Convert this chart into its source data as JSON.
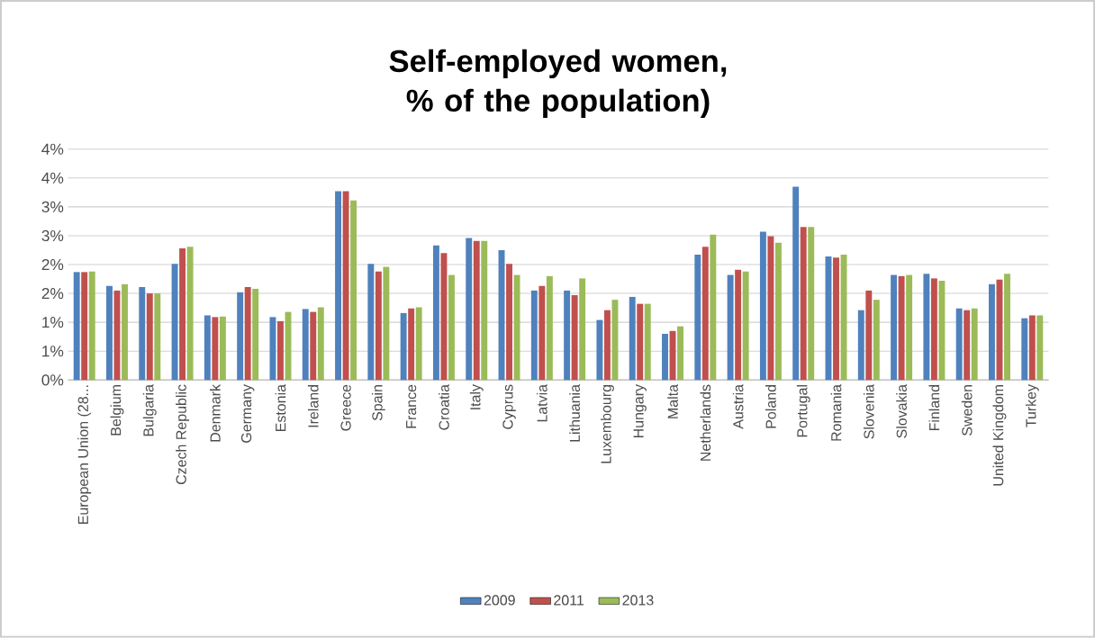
{
  "chart_data": {
    "type": "bar",
    "title": "Self-employed women, % of the population)",
    "categories": [
      "European Union (28...",
      "Belgium",
      "Bulgaria",
      "Czech Republic",
      "Denmark",
      "Germany",
      "Estonia",
      "Ireland",
      "Greece",
      "Spain",
      "France",
      "Croatia",
      "Italy",
      "Cyprus",
      "Latvia",
      "Lithuania",
      "Luxembourg",
      "Hungary",
      "Malta",
      "Netherlands",
      "Austria",
      "Poland",
      "Portugal",
      "Romania",
      "Slovenia",
      "Slovakia",
      "Finland",
      "Sweden",
      "United Kingdom",
      "Turkey"
    ],
    "series": [
      {
        "name": "2009",
        "color": "#4f81bd",
        "values": [
          1.87,
          1.63,
          1.61,
          2.01,
          1.12,
          1.52,
          1.09,
          1.23,
          3.27,
          2.01,
          1.16,
          2.33,
          2.46,
          2.25,
          1.55,
          1.55,
          1.04,
          1.44,
          0.8,
          2.17,
          1.82,
          2.57,
          3.35,
          2.14,
          1.21,
          1.82,
          1.84,
          1.24,
          1.66,
          1.07
        ]
      },
      {
        "name": "2011",
        "color": "#c0504d",
        "values": [
          1.87,
          1.55,
          1.5,
          2.28,
          1.09,
          1.61,
          1.02,
          1.18,
          3.27,
          1.88,
          1.24,
          2.2,
          2.41,
          2.01,
          1.63,
          1.47,
          1.21,
          1.32,
          0.85,
          2.31,
          1.91,
          2.49,
          2.65,
          2.12,
          1.55,
          1.8,
          1.76,
          1.21,
          1.74,
          1.12
        ]
      },
      {
        "name": "2013",
        "color": "#9bbb59",
        "values": [
          1.88,
          1.66,
          1.5,
          2.31,
          1.1,
          1.58,
          1.18,
          1.26,
          3.11,
          1.96,
          1.26,
          1.82,
          2.41,
          1.82,
          1.8,
          1.76,
          1.39,
          1.32,
          0.93,
          2.52,
          1.88,
          2.38,
          2.65,
          2.17,
          1.39,
          1.82,
          1.72,
          1.24,
          1.84,
          1.12
        ]
      }
    ],
    "ylim": [
      0,
      4
    ],
    "yticks": [
      {
        "value": 0,
        "label": "0%"
      },
      {
        "value": 0.5,
        "label": "1%"
      },
      {
        "value": 1,
        "label": "1%"
      },
      {
        "value": 1.5,
        "label": "2%"
      },
      {
        "value": 2,
        "label": "2%"
      },
      {
        "value": 2.5,
        "label": "3%"
      },
      {
        "value": 3,
        "label": "3%"
      },
      {
        "value": 3.5,
        "label": "4%"
      },
      {
        "value": 4,
        "label": "4%"
      }
    ],
    "grid": "y",
    "legend": "bottom"
  }
}
